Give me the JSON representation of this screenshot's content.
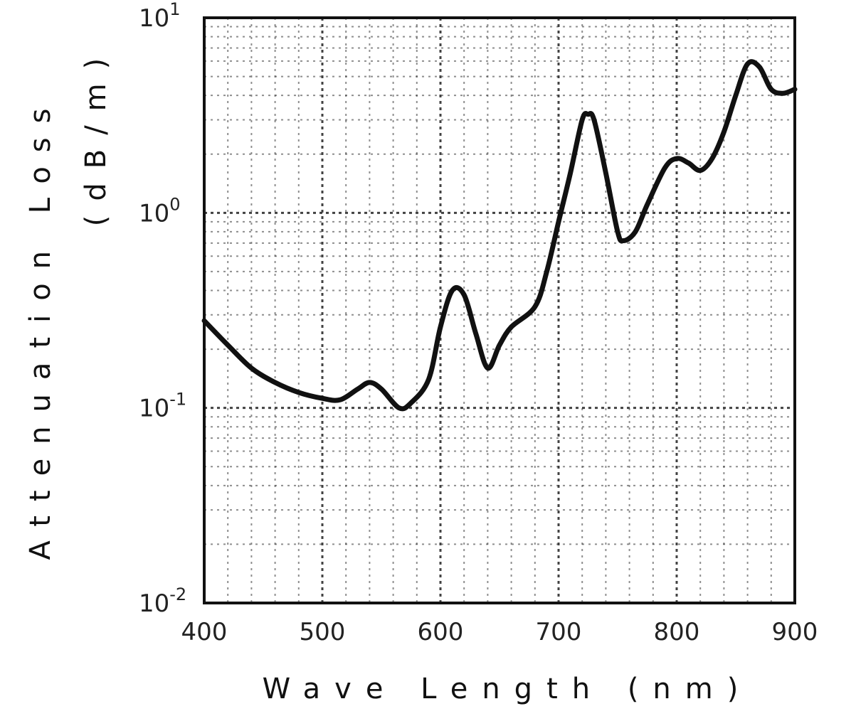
{
  "chart_data": {
    "type": "line",
    "title": "",
    "xlabel": "Wave Length (nm)",
    "ylabel_main": "Attenuation Loss",
    "ylabel_unit": "(dB/m)",
    "xlim": [
      400,
      900
    ],
    "ylim": [
      0.01,
      10
    ],
    "y_scale": "log",
    "grid": true,
    "x_ticks": [
      400,
      500,
      600,
      700,
      800,
      900
    ],
    "x_tick_labels": [
      "400",
      "500",
      "600",
      "700",
      "800",
      "900"
    ],
    "y_ticks": [
      0.01,
      0.1,
      1,
      10
    ],
    "y_tick_labels": [
      {
        "base": "10",
        "exp": "-2"
      },
      {
        "base": "10",
        "exp": "-1"
      },
      {
        "base": "10",
        "exp": "0"
      },
      {
        "base": "10",
        "exp": "1"
      }
    ],
    "series": [
      {
        "color": "#111111",
        "x": [
          400,
          420,
          440,
          460,
          480,
          500,
          515,
          530,
          540,
          550,
          565,
          575,
          590,
          600,
          610,
          620,
          630,
          640,
          650,
          660,
          680,
          690,
          700,
          710,
          720,
          725,
          730,
          740,
          750,
          755,
          765,
          775,
          790,
          800,
          810,
          820,
          830,
          840,
          850,
          860,
          870,
          880,
          890,
          900
        ],
        "y": [
          0.28,
          0.21,
          0.16,
          0.135,
          0.12,
          0.112,
          0.11,
          0.125,
          0.135,
          0.125,
          0.1,
          0.106,
          0.14,
          0.26,
          0.4,
          0.38,
          0.24,
          0.16,
          0.21,
          0.26,
          0.33,
          0.5,
          0.9,
          1.6,
          3.0,
          3.2,
          3.0,
          1.6,
          0.8,
          0.72,
          0.8,
          1.1,
          1.7,
          1.9,
          1.8,
          1.65,
          1.9,
          2.6,
          4.0,
          5.8,
          5.6,
          4.3,
          4.1,
          4.3
        ]
      }
    ]
  }
}
